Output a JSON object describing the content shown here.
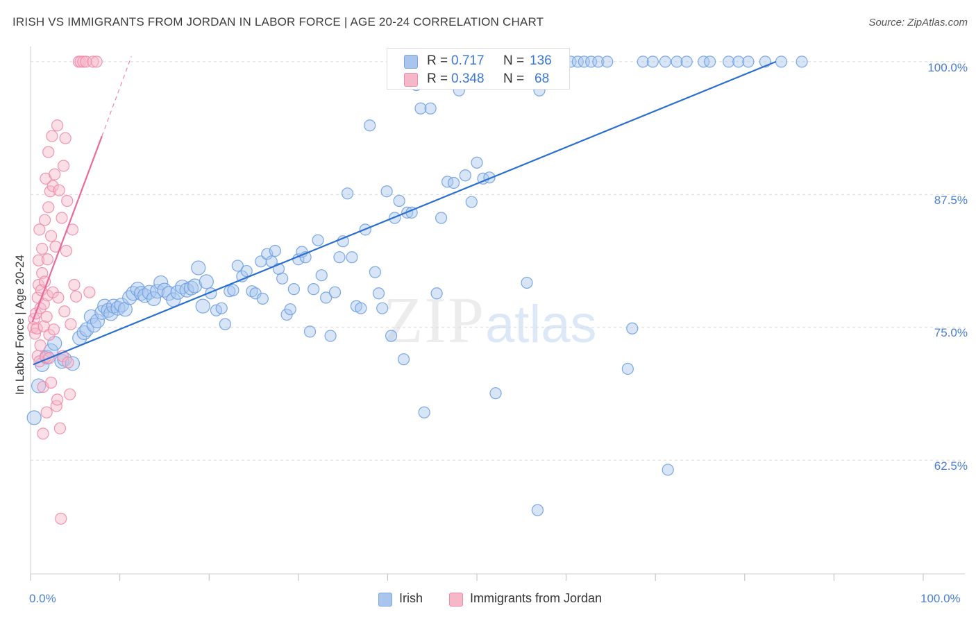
{
  "header": {
    "title": "IRISH VS IMMIGRANTS FROM JORDAN IN LABOR FORCE | AGE 20-24 CORRELATION CHART",
    "source": "Source: ZipAtlas.com"
  },
  "watermark": {
    "zip": "ZIP",
    "atlas": "atlas"
  },
  "stats": [
    {
      "r_label": "R =",
      "r_value": "0.717",
      "n_label": "N =",
      "n_value": "136",
      "color": "#a9c5ee"
    },
    {
      "r_label": "R =",
      "r_value": "0.348",
      "n_label": "N =",
      "n_value": "68",
      "color": "#f6b7c9"
    }
  ],
  "legend": [
    {
      "label": "Irish",
      "color": "#a9c5ee"
    },
    {
      "label": "Immigrants from Jordan",
      "color": "#f6b7c9"
    }
  ],
  "chart_data": {
    "type": "scatter",
    "title": "IRISH VS IMMIGRANTS FROM JORDAN IN LABOR FORCE | AGE 20-24 CORRELATION CHART",
    "xlabel": "",
    "ylabel": "In Labor Force | Age 20-24",
    "xlim": [
      0,
      100
    ],
    "ylim": [
      51.8,
      101.3
    ],
    "x_tick_labels": [
      "0.0%",
      "100.0%"
    ],
    "y_ticks": [
      62.5,
      75.0,
      87.5,
      100.0
    ],
    "y_tick_labels": [
      "62.5%",
      "75.0%",
      "87.5%",
      "100.0%"
    ],
    "series": [
      {
        "name": "Irish",
        "color": "#a9c5ee",
        "stroke": "#6d9ee0",
        "line_color": "#2a6fd0",
        "trend": {
          "x0": 0.3,
          "y0": 71.5,
          "x1": 83.5,
          "y1": 100.0
        },
        "points": [
          [
            0.4,
            66.5
          ],
          [
            0.9,
            69.5
          ],
          [
            1.3,
            71.5
          ],
          [
            1.8,
            72.2
          ],
          [
            2.3,
            72.8
          ],
          [
            2.7,
            73.5
          ],
          [
            3.5,
            71.8
          ],
          [
            3.8,
            72.0
          ],
          [
            4.7,
            71.6
          ],
          [
            5.5,
            74.0
          ],
          [
            6.0,
            74.5
          ],
          [
            6.3,
            74.8
          ],
          [
            6.8,
            76.0
          ],
          [
            7.1,
            75.2
          ],
          [
            7.5,
            75.6
          ],
          [
            8.0,
            76.4
          ],
          [
            8.3,
            77.0
          ],
          [
            8.7,
            76.6
          ],
          [
            9.0,
            76.3
          ],
          [
            9.3,
            77.0
          ],
          [
            9.8,
            76.8
          ],
          [
            10.2,
            77.1
          ],
          [
            10.6,
            76.7
          ],
          [
            11.1,
            77.8
          ],
          [
            11.5,
            78.2
          ],
          [
            12.0,
            78.6
          ],
          [
            12.4,
            78.2
          ],
          [
            12.8,
            78.0
          ],
          [
            13.3,
            78.3
          ],
          [
            13.8,
            77.7
          ],
          [
            14.2,
            78.4
          ],
          [
            14.6,
            79.2
          ],
          [
            15.0,
            78.5
          ],
          [
            15.5,
            78.2
          ],
          [
            16.0,
            77.6
          ],
          [
            16.5,
            78.3
          ],
          [
            17.0,
            78.8
          ],
          [
            17.5,
            78.5
          ],
          [
            18.0,
            78.7
          ],
          [
            18.4,
            78.9
          ],
          [
            18.8,
            80.6
          ],
          [
            19.3,
            77.0
          ],
          [
            19.7,
            79.3
          ],
          [
            20.2,
            78.2
          ],
          [
            20.8,
            76.6
          ],
          [
            21.4,
            76.8
          ],
          [
            21.8,
            75.3
          ],
          [
            22.3,
            78.4
          ],
          [
            22.7,
            78.5
          ],
          [
            23.2,
            80.8
          ],
          [
            23.7,
            79.8
          ],
          [
            24.2,
            80.3
          ],
          [
            24.8,
            78.4
          ],
          [
            25.2,
            78.2
          ],
          [
            25.8,
            81.2
          ],
          [
            26.0,
            77.7
          ],
          [
            26.5,
            81.9
          ],
          [
            27.0,
            81.2
          ],
          [
            27.4,
            82.2
          ],
          [
            27.8,
            80.5
          ],
          [
            28.2,
            79.6
          ],
          [
            28.7,
            76.2
          ],
          [
            29.1,
            76.7
          ],
          [
            29.5,
            78.6
          ],
          [
            30.0,
            81.4
          ],
          [
            30.4,
            82.1
          ],
          [
            30.8,
            81.6
          ],
          [
            31.3,
            74.6
          ],
          [
            31.7,
            78.6
          ],
          [
            32.2,
            83.2
          ],
          [
            32.6,
            79.9
          ],
          [
            33.1,
            77.8
          ],
          [
            33.6,
            74.2
          ],
          [
            34.1,
            78.3
          ],
          [
            34.6,
            81.6
          ],
          [
            35.0,
            83.1
          ],
          [
            35.5,
            87.6
          ],
          [
            36.0,
            81.6
          ],
          [
            36.5,
            77.0
          ],
          [
            37.0,
            76.8
          ],
          [
            37.5,
            84.2
          ],
          [
            38.0,
            94.0
          ],
          [
            38.6,
            80.2
          ],
          [
            39.0,
            78.2
          ],
          [
            39.4,
            76.8
          ],
          [
            39.9,
            87.8
          ],
          [
            40.4,
            74.2
          ],
          [
            40.8,
            85.3
          ],
          [
            41.3,
            86.9
          ],
          [
            41.8,
            72.0
          ],
          [
            42.2,
            85.8
          ],
          [
            42.7,
            85.8
          ],
          [
            43.2,
            97.8
          ],
          [
            43.7,
            95.6
          ],
          [
            44.1,
            67.0
          ],
          [
            44.8,
            95.6
          ],
          [
            45.5,
            78.2
          ],
          [
            46.0,
            85.3
          ],
          [
            46.7,
            88.7
          ],
          [
            47.4,
            88.6
          ],
          [
            48.0,
            97.3
          ],
          [
            48.7,
            89.3
          ],
          [
            49.4,
            86.8
          ],
          [
            50.0,
            90.5
          ],
          [
            50.7,
            89.0
          ],
          [
            51.4,
            89.1
          ],
          [
            52.1,
            68.8
          ],
          [
            53.0,
            100.0
          ],
          [
            54.3,
            100.0
          ],
          [
            55.6,
            79.2
          ],
          [
            56.8,
            57.8
          ],
          [
            57.0,
            97.3
          ],
          [
            58.9,
            100.0
          ],
          [
            59.6,
            100.0
          ],
          [
            60.5,
            100.0
          ],
          [
            61.3,
            100.0
          ],
          [
            62.0,
            100.0
          ],
          [
            62.8,
            100.0
          ],
          [
            63.6,
            100.0
          ],
          [
            64.6,
            100.0
          ],
          [
            66.9,
            71.1
          ],
          [
            67.4,
            74.9
          ],
          [
            68.6,
            100.0
          ],
          [
            69.7,
            100.0
          ],
          [
            71.1,
            100.0
          ],
          [
            71.4,
            61.6
          ],
          [
            72.4,
            100.0
          ],
          [
            73.5,
            100.0
          ],
          [
            75.4,
            100.0
          ],
          [
            76.1,
            100.0
          ],
          [
            78.2,
            100.0
          ],
          [
            79.3,
            100.0
          ],
          [
            80.4,
            100.0
          ],
          [
            82.3,
            100.0
          ],
          [
            84.1,
            100.0
          ],
          [
            86.4,
            100.0
          ]
        ]
      },
      {
        "name": "Immigrants from Jordan",
        "color": "#f6b7c9",
        "stroke": "#ee8aa9",
        "line_color": "#e8699a",
        "trend": {
          "x0": 0.2,
          "y0": 75.5,
          "x1": 8.0,
          "y1": 93.0
        },
        "trend_ext": {
          "x0": 8.0,
          "y0": 93.0,
          "x1": 11.3,
          "y1": 100.5
        },
        "points": [
          [
            0.3,
            75.0
          ],
          [
            0.4,
            75.8
          ],
          [
            0.5,
            74.4
          ],
          [
            0.6,
            76.3
          ],
          [
            0.7,
            74.9
          ],
          [
            0.8,
            77.8
          ],
          [
            0.8,
            72.3
          ],
          [
            0.9,
            79.0
          ],
          [
            0.9,
            81.3
          ],
          [
            1.0,
            84.2
          ],
          [
            1.0,
            71.8
          ],
          [
            1.1,
            76.8
          ],
          [
            1.1,
            73.3
          ],
          [
            1.2,
            78.5
          ],
          [
            1.3,
            80.1
          ],
          [
            1.3,
            82.4
          ],
          [
            1.4,
            65.0
          ],
          [
            1.4,
            69.4
          ],
          [
            1.5,
            77.2
          ],
          [
            1.5,
            75.1
          ],
          [
            1.6,
            79.3
          ],
          [
            1.6,
            85.1
          ],
          [
            1.7,
            89.0
          ],
          [
            1.7,
            72.2
          ],
          [
            1.8,
            76.0
          ],
          [
            1.8,
            67.0
          ],
          [
            1.9,
            78.0
          ],
          [
            1.9,
            81.4
          ],
          [
            2.0,
            86.3
          ],
          [
            2.0,
            91.5
          ],
          [
            2.1,
            74.3
          ],
          [
            2.1,
            72.1
          ],
          [
            2.2,
            87.8
          ],
          [
            2.3,
            83.6
          ],
          [
            2.3,
            69.8
          ],
          [
            2.4,
            93.0
          ],
          [
            2.5,
            88.3
          ],
          [
            2.5,
            78.3
          ],
          [
            2.6,
            74.8
          ],
          [
            2.7,
            89.4
          ],
          [
            2.8,
            82.6
          ],
          [
            2.9,
            67.6
          ],
          [
            3.0,
            94.0
          ],
          [
            3.0,
            68.2
          ],
          [
            3.1,
            77.8
          ],
          [
            3.2,
            87.9
          ],
          [
            3.3,
            65.5
          ],
          [
            3.4,
            57.0
          ],
          [
            3.5,
            85.3
          ],
          [
            3.6,
            72.3
          ],
          [
            3.7,
            90.2
          ],
          [
            3.8,
            76.5
          ],
          [
            3.9,
            92.8
          ],
          [
            4.0,
            82.2
          ],
          [
            4.1,
            86.9
          ],
          [
            4.2,
            71.7
          ],
          [
            4.4,
            68.7
          ],
          [
            4.5,
            75.3
          ],
          [
            4.7,
            84.2
          ],
          [
            4.9,
            79.0
          ],
          [
            5.1,
            77.9
          ],
          [
            5.4,
            100.0
          ],
          [
            5.6,
            100.0
          ],
          [
            5.9,
            100.0
          ],
          [
            6.2,
            100.0
          ],
          [
            6.6,
            78.3
          ],
          [
            7.0,
            100.0
          ],
          [
            7.4,
            100.0
          ]
        ]
      }
    ]
  }
}
